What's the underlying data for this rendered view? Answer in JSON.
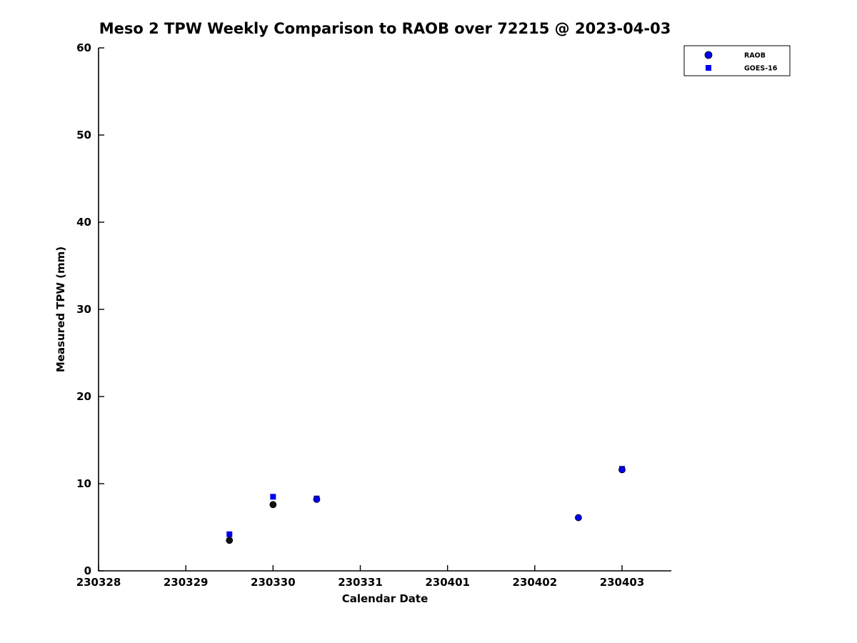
{
  "chart_data": {
    "type": "scatter",
    "title": "Meso 2 TPW Weekly Comparison to RAOB over 72215 @ 2023-04-03",
    "xlabel": "Calendar Date",
    "ylabel": "Measured TPW (mm)",
    "x_tick_labels": [
      "230328",
      "230329",
      "230330",
      "230331",
      "230401",
      "230402",
      "230403"
    ],
    "x_note": "point x values are day offsets from the 230328 tick (0 = 230328, 6 = 230403)",
    "y_ticks": [
      0,
      10,
      20,
      30,
      40,
      50,
      60
    ],
    "ylim": [
      0,
      60
    ],
    "grid": false,
    "legend": {
      "position": "top-right",
      "entries": [
        {
          "label": "RAOB",
          "marker": "circle"
        },
        {
          "label": "GOES-16",
          "marker": "square"
        }
      ]
    },
    "series": [
      {
        "name": "GOES-16",
        "marker": "square",
        "color": "#0000ee",
        "points": [
          {
            "x": 1.5,
            "y": 4.2
          },
          {
            "x": 2.0,
            "y": 8.5
          },
          {
            "x": 2.5,
            "y": 8.3
          },
          {
            "x": 6.0,
            "y": 11.7
          }
        ]
      },
      {
        "name": "RAOB",
        "marker": "circle",
        "color": "#0000ee",
        "edge_color": "#000000",
        "points": [
          {
            "x": 1.5,
            "y": 3.5,
            "dark": true
          },
          {
            "x": 2.0,
            "y": 7.6,
            "dark": true
          },
          {
            "x": 2.5,
            "y": 8.2
          },
          {
            "x": 5.5,
            "y": 6.1
          },
          {
            "x": 6.0,
            "y": 11.6
          }
        ]
      }
    ]
  },
  "colors": {
    "marker_blue": "#0000ee",
    "dark_marker": "#111111",
    "axis": "#000000",
    "background": "#ffffff"
  }
}
